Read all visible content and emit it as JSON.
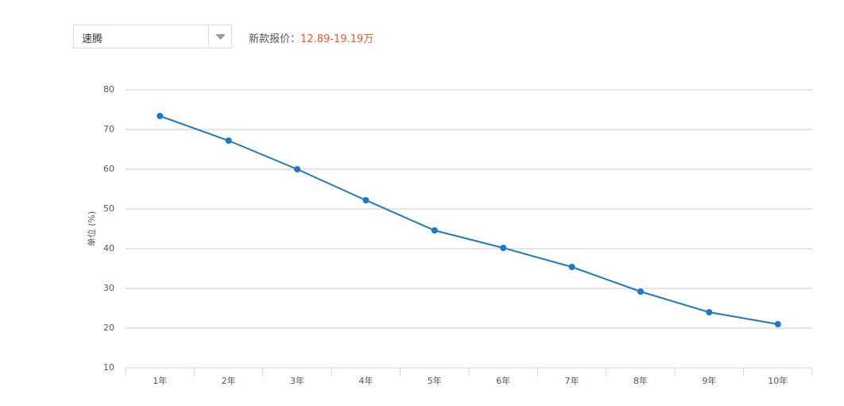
{
  "selector": {
    "value": "速腾"
  },
  "price": {
    "label": "新款报价：",
    "value": "12.89-19.19万"
  },
  "chart_data": {
    "type": "line",
    "y_label": "单位 (%)",
    "categories": [
      "1年",
      "2年",
      "3年",
      "4年",
      "5年",
      "6年",
      "7年",
      "8年",
      "9年",
      "10年"
    ],
    "values": [
      73.4,
      67.2,
      60,
      52.2,
      44.6,
      40.2,
      35.4,
      29.2,
      24,
      21
    ],
    "color": "#1a7ac9",
    "ylim": [
      10,
      80
    ],
    "yticks": [
      10,
      20,
      30,
      40,
      50,
      60,
      70,
      80
    ],
    "grid": true
  }
}
